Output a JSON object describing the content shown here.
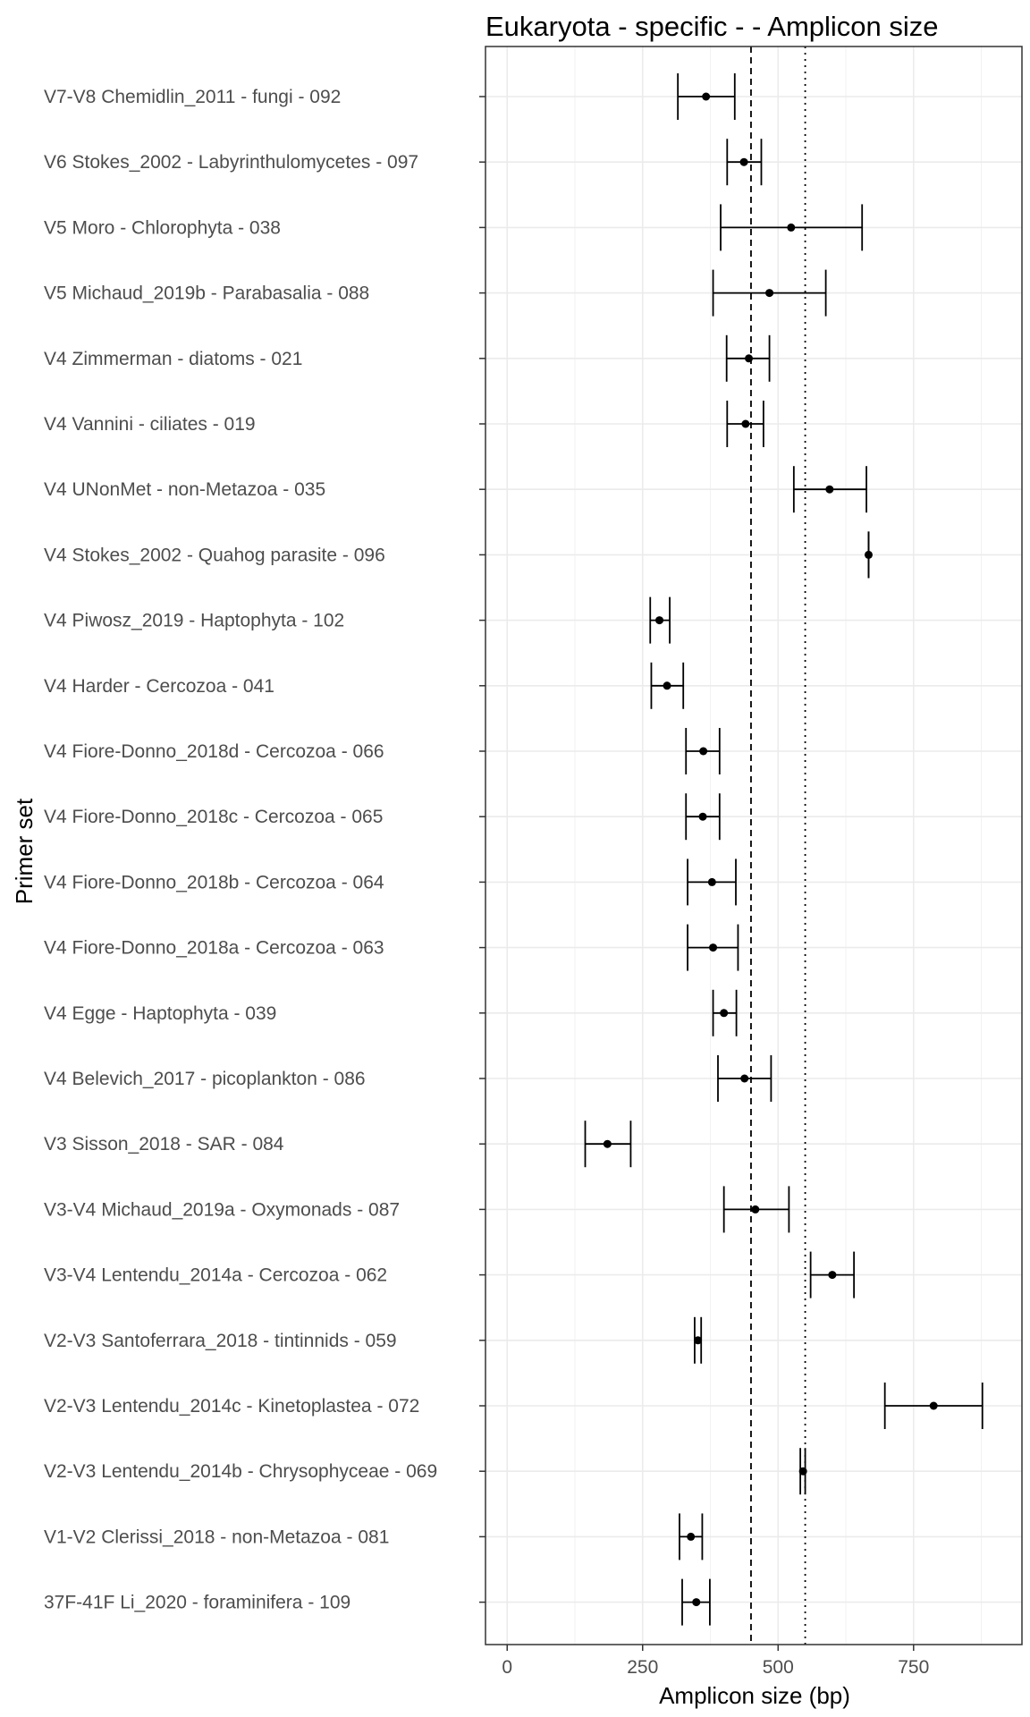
{
  "chart_data": {
    "type": "errorbar",
    "title": "Eukaryota - specific -  - Amplicon size",
    "xlabel": "Amplicon size (bp)",
    "ylabel": "Primer set",
    "xlim": [
      -40,
      950
    ],
    "xticks": [
      0,
      250,
      500,
      750
    ],
    "xtick_labels": [
      "0",
      "250",
      "500",
      "750"
    ],
    "grid": true,
    "reference_lines": [
      {
        "style": "dashed",
        "x": 450
      },
      {
        "style": "dotted",
        "x": 550
      }
    ],
    "categories": [
      "V7-V8 Chemidlin_2011 - fungi - 092",
      "V6 Stokes_2002 - Labyrinthulomycetes - 097",
      "V5 Moro - Chlorophyta - 038",
      "V5 Michaud_2019b - Parabasalia - 088",
      "V4 Zimmerman - diatoms - 021",
      "V4 Vannini - ciliates - 019",
      "V4 UNonMet - non-Metazoa - 035",
      "V4 Stokes_2002 - Quahog parasite - 096",
      "V4 Piwosz_2019 - Haptophyta - 102",
      "V4 Harder - Cercozoa - 041",
      "V4 Fiore-Donno_2018d - Cercozoa - 066",
      "V4 Fiore-Donno_2018c - Cercozoa - 065",
      "V4 Fiore-Donno_2018b - Cercozoa - 064",
      "V4 Fiore-Donno_2018a - Cercozoa - 063",
      "V4 Egge - Haptophyta - 039",
      "V4 Belevich_2017 - picoplankton - 086",
      "V3 Sisson_2018 - SAR - 084",
      "V3-V4 Michaud_2019a - Oxymonads - 087",
      "V3-V4 Lentendu_2014a - Cercozoa - 062",
      "V2-V3 Santoferrara_2018 - tintinnids - 059",
      "V2-V3 Lentendu_2014c - Kinetoplastea - 072",
      "V2-V3 Lentendu_2014b - Chrysophyceae - 069",
      "V1-V2 Clerissi_2018 - non-Metazoa - 081",
      "37F-41F Li_2020 - foraminifera - 109"
    ],
    "means": [
      367,
      437,
      524,
      484,
      446,
      440,
      595,
      667,
      281,
      295,
      362,
      361,
      378,
      380,
      400,
      438,
      185,
      458,
      600,
      352,
      787,
      546,
      339,
      349
    ],
    "lows": [
      315,
      406,
      394,
      380,
      405,
      406,
      529,
      667,
      264,
      266,
      330,
      330,
      333,
      333,
      380,
      389,
      144,
      400,
      560,
      346,
      697,
      541,
      318,
      323
    ],
    "highs": [
      420,
      469,
      655,
      588,
      484,
      473,
      663,
      667,
      300,
      325,
      392,
      392,
      422,
      426,
      423,
      487,
      228,
      520,
      640,
      358,
      877,
      550,
      360,
      374
    ]
  }
}
